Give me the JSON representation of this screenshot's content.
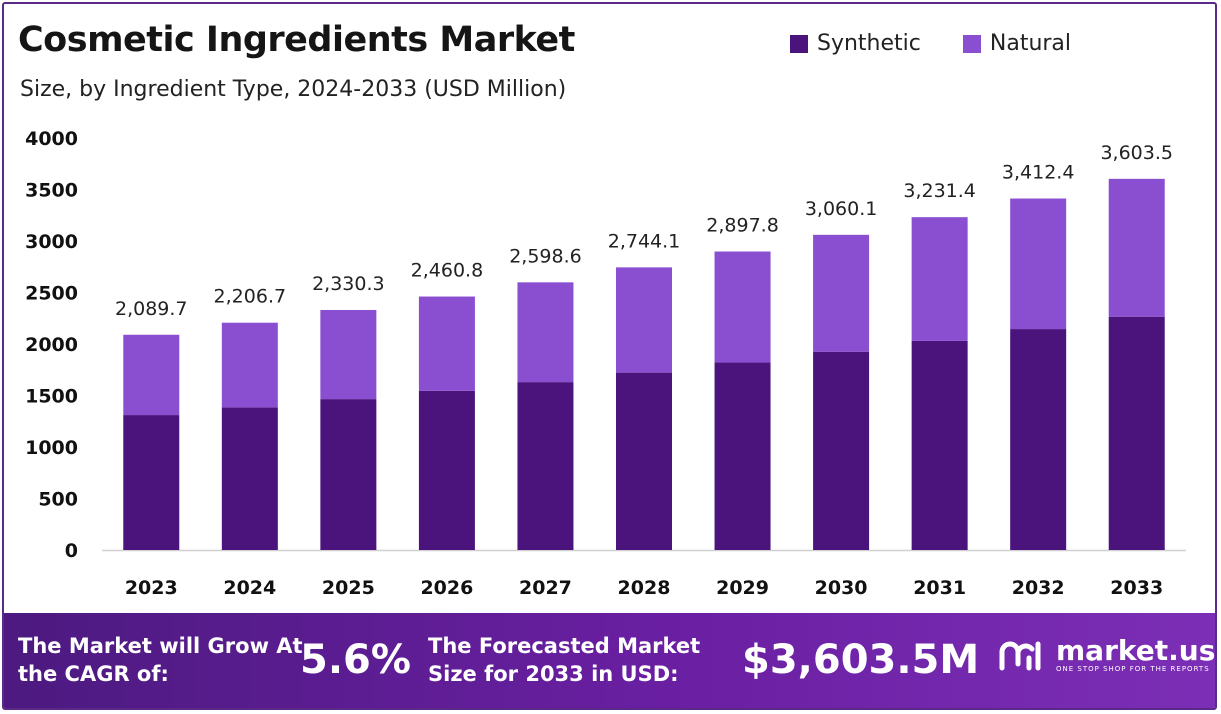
{
  "header": {
    "title": "Cosmetic Ingredients Market",
    "subtitle": "Size, by Ingredient  Type, 2024-2033 (USD Million)"
  },
  "legend": [
    {
      "label": "Synthetic",
      "color": "#4a147c"
    },
    {
      "label": "Natural",
      "color": "#8a4fd0"
    }
  ],
  "chart_data": {
    "type": "bar",
    "stacked": true,
    "title": "Cosmetic Ingredients Market",
    "subtitle": "Size, by Ingredient  Type, 2024-2033 (USD Million)",
    "xlabel": "",
    "ylabel": "",
    "ylim": [
      0,
      4000
    ],
    "yticks": [
      0,
      500,
      1000,
      1500,
      2000,
      2500,
      3000,
      3500,
      4000
    ],
    "grid": false,
    "legend_position": "top-right",
    "categories": [
      "2023",
      "2024",
      "2025",
      "2026",
      "2027",
      "2028",
      "2029",
      "2030",
      "2031",
      "2032",
      "2033"
    ],
    "series": [
      {
        "name": "Synthetic",
        "color": "#4a147c",
        "values": [
          1310,
          1385,
          1465,
          1545,
          1630,
          1722,
          1820,
          1925,
          2030,
          2145,
          2265
        ]
      },
      {
        "name": "Natural",
        "color": "#8a4fd0",
        "values": [
          779.7,
          821.7,
          865.3,
          915.8,
          968.6,
          1022.1,
          1077.8,
          1135.1,
          1201.4,
          1267.4,
          1338.5
        ]
      }
    ],
    "totals": [
      2089.7,
      2206.7,
      2330.3,
      2460.8,
      2598.6,
      2744.1,
      2897.8,
      3060.1,
      3231.4,
      3412.4,
      3603.5
    ],
    "total_labels": [
      "2,089.7",
      "2,206.7",
      "2,330.3",
      "2,460.8",
      "2,598.6",
      "2,744.1",
      "2,897.8",
      "3,060.1",
      "3,231.4",
      "3,412.4",
      "3,603.5"
    ]
  },
  "footer": {
    "cagr_label": "The Market will Grow At the CAGR of:",
    "cagr_value": "5.6%",
    "forecast_label": "The Forecasted Market Size for 2033 in USD:",
    "forecast_value": "$3,603.5M",
    "brand_name": "market.us",
    "brand_tagline": "ONE STOP SHOP FOR THE REPORTS"
  }
}
